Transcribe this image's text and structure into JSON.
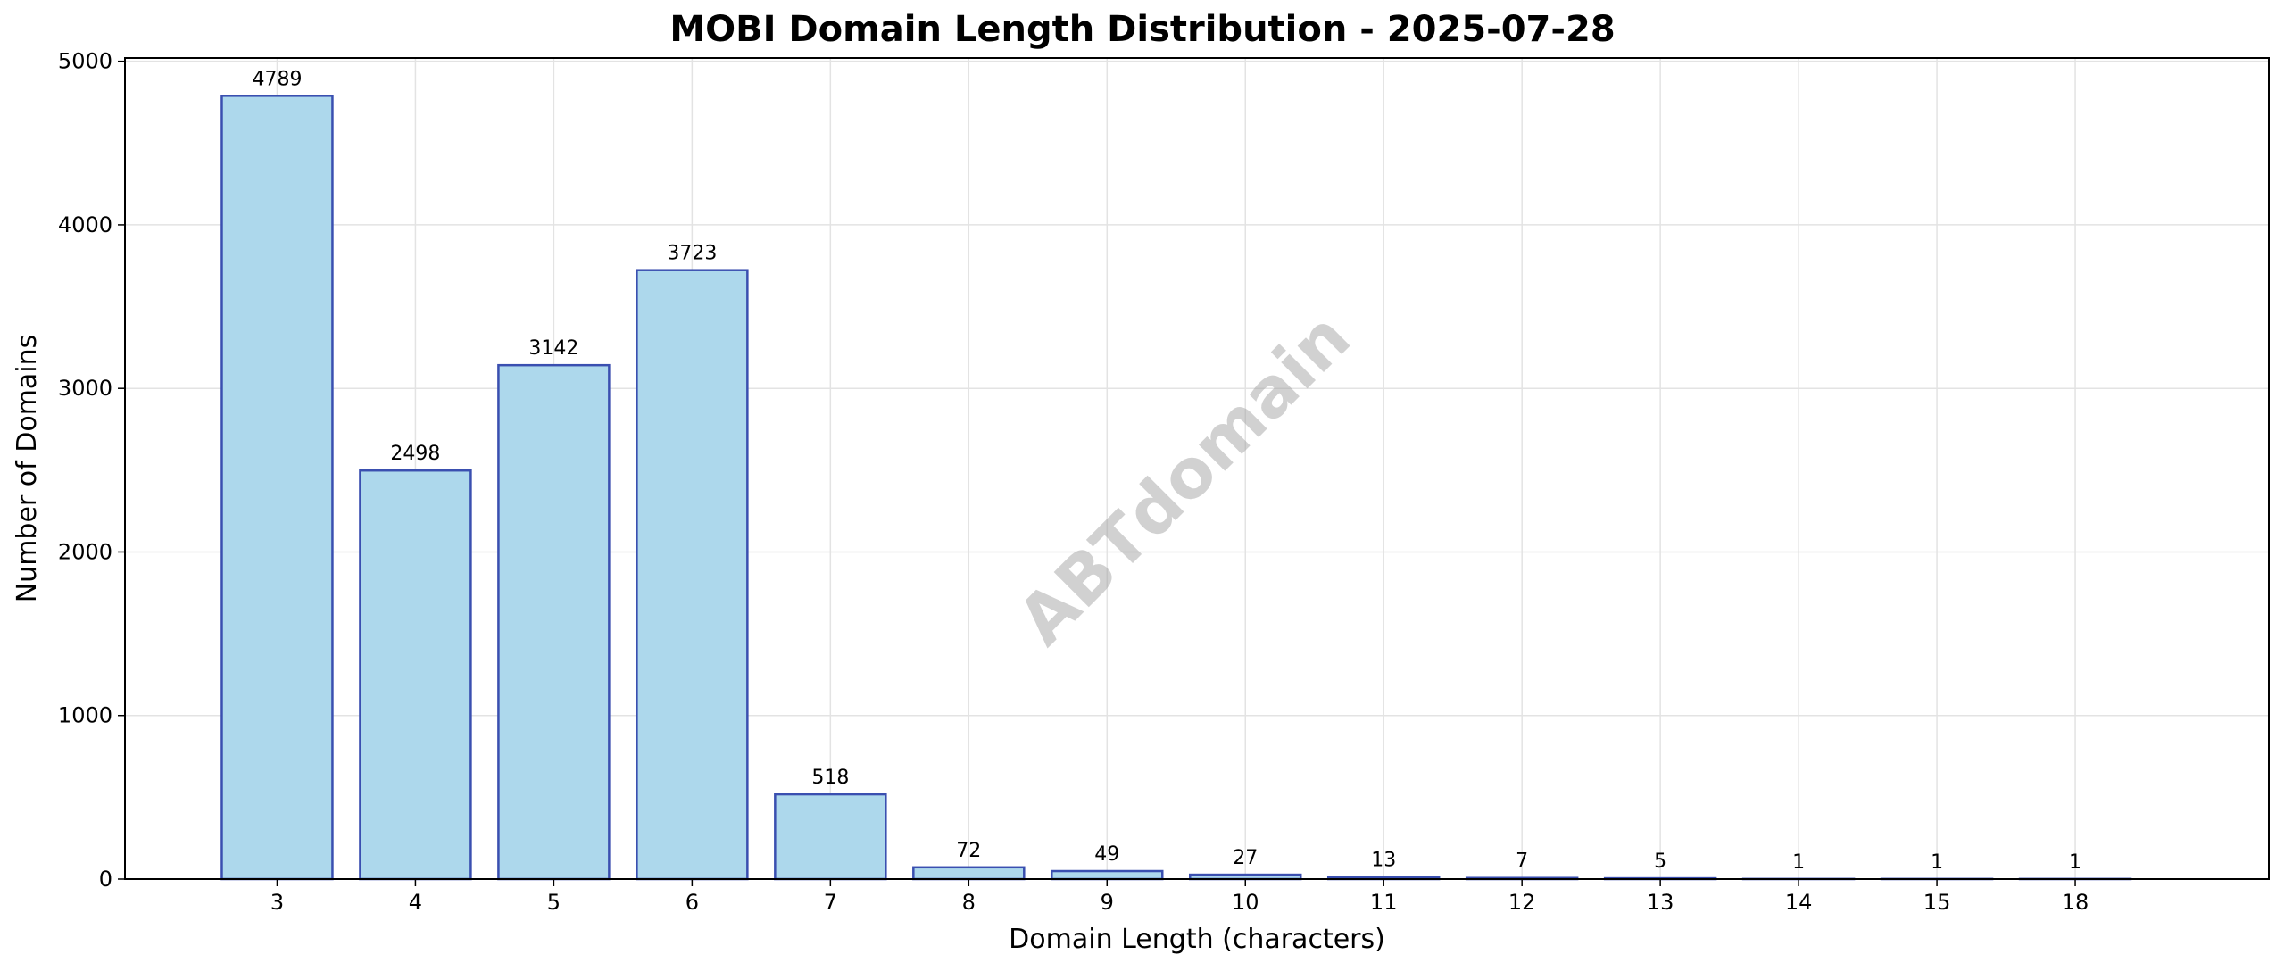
{
  "chart_data": {
    "type": "bar",
    "title": "MOBI Domain Length Distribution - 2025-07-28",
    "xlabel": "Domain Length (characters)",
    "ylabel": "Number of Domains",
    "categories": [
      "3",
      "4",
      "5",
      "6",
      "7",
      "8",
      "9",
      "10",
      "11",
      "12",
      "13",
      "14",
      "15",
      "18"
    ],
    "values": [
      4789,
      2498,
      3142,
      3723,
      518,
      72,
      49,
      27,
      13,
      7,
      5,
      1,
      1,
      1
    ],
    "data_labels": [
      "4789",
      "2498",
      "3142",
      "3723",
      "518",
      "72",
      "49",
      "27",
      "13",
      "7",
      "5",
      "1",
      "1",
      "1"
    ],
    "ylim": [
      0,
      5020
    ],
    "yticks": [
      0,
      1000,
      2000,
      3000,
      4000,
      5000
    ],
    "grid": true,
    "legend": "none",
    "watermark": "ABTdomain",
    "colors": {
      "bar_fill": "#add8ec",
      "bar_edge": "#3a4fb0",
      "grid": "#e3e3e3",
      "axis": "#000000",
      "watermark": "#999999"
    }
  }
}
